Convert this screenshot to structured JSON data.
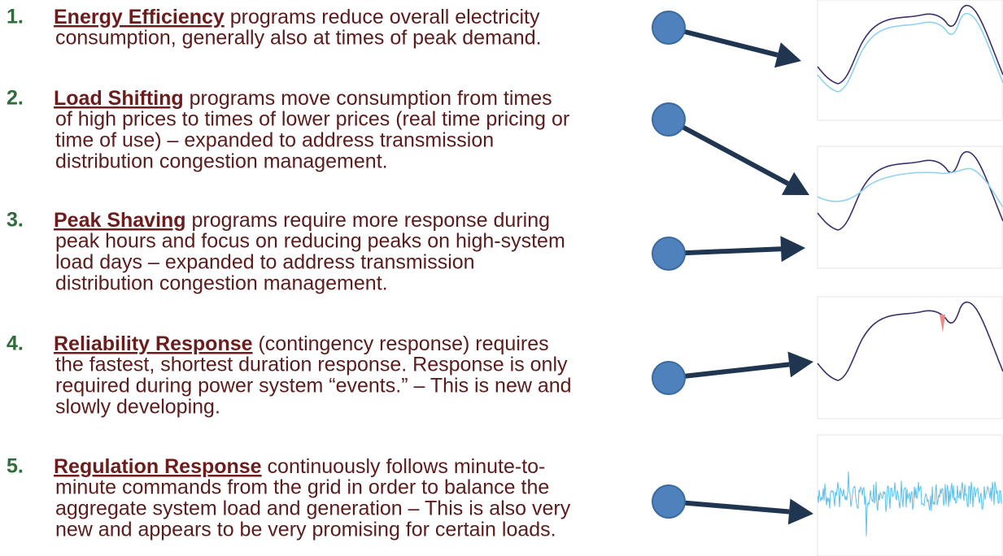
{
  "items": [
    {
      "number": "1.",
      "term": "Energy Efficiency",
      "lines": [
        "programs reduce overall electricity",
        "consumption, generally also at times of peak demand."
      ]
    },
    {
      "number": "2.",
      "term": "Load Shifting",
      "lines": [
        "programs move consumption from times",
        "of high prices to times of lower prices (real time pricing or",
        "time of use) – expanded to address transmission",
        "distribution congestion management."
      ]
    },
    {
      "number": "3.",
      "term": "Peak Shaving",
      "lines": [
        "programs require more response during",
        "peak hours and focus on reducing peaks on high-system",
        "load days – expanded to address transmission",
        "distribution congestion management."
      ]
    },
    {
      "number": "4.",
      "term": "Reliability Response",
      "lines": [
        "(contingency response) requires",
        "the fastest, shortest duration response. Response is only",
        "required during power system “events.” – This is new and",
        "slowly developing."
      ]
    },
    {
      "number": "5.",
      "term": "Regulation Response",
      "lines": [
        "continuously follows minute-to-",
        "minute commands from the grid in order to balance the",
        "aggregate system load and generation – This is also very",
        "new and appears to be very promising for certain loads."
      ]
    }
  ]
}
